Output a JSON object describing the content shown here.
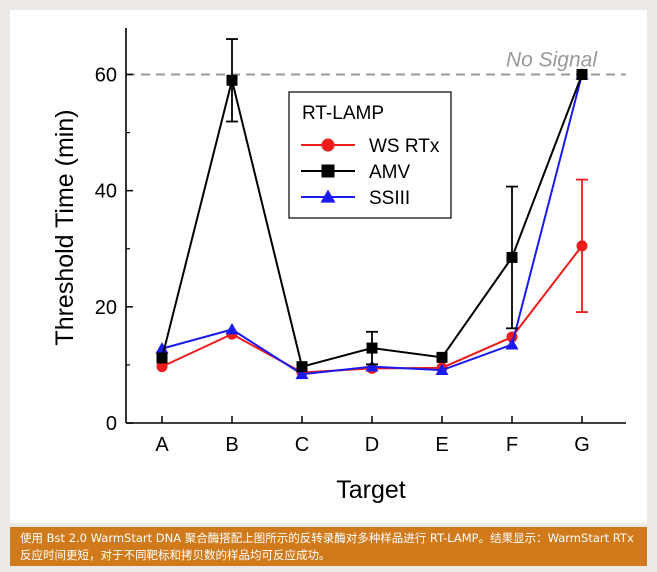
{
  "caption": "使用 Bst 2.0 WarmStart DNA 聚合酶搭配上图所示的反转录酶对多种样品进行 RT-LAMP。结果显示：WarmStart RTx反应时间更短，对于不同靶标和拷贝数的样品均可反应成功。",
  "chart_data": {
    "type": "line",
    "title": "",
    "xlabel": "Target",
    "ylabel": "Threshold Time (min)",
    "categories": [
      "A",
      "B",
      "C",
      "D",
      "E",
      "F",
      "G"
    ],
    "ylim": [
      0,
      68
    ],
    "yticks": [
      0,
      20,
      40,
      60
    ],
    "grid": false,
    "legend_title": "RT-LAMP",
    "legend_position": "top-center",
    "reference_line": {
      "y": 60,
      "label": "No Signal",
      "color": "#999999"
    },
    "series": [
      {
        "name": "WS RTx",
        "color": "#ee1c1c",
        "marker": "circle",
        "values": [
          9.7,
          15.3,
          8.7,
          9.4,
          9.5,
          14.8,
          30.5
        ],
        "errors": [
          null,
          null,
          null,
          null,
          null,
          null,
          11.4
        ]
      },
      {
        "name": "AMV",
        "color": "#000000",
        "marker": "square",
        "values": [
          11.2,
          59,
          9.7,
          12.9,
          11.3,
          28.5,
          60
        ],
        "errors": [
          null,
          7.1,
          null,
          2.8,
          null,
          12.2,
          null
        ]
      },
      {
        "name": "SSIII",
        "color": "#1a1aee",
        "marker": "triangle",
        "values": [
          12.8,
          16.1,
          8.4,
          9.7,
          9.1,
          13.5,
          60
        ],
        "errors": [
          null,
          null,
          null,
          null,
          null,
          null,
          null
        ]
      }
    ]
  }
}
